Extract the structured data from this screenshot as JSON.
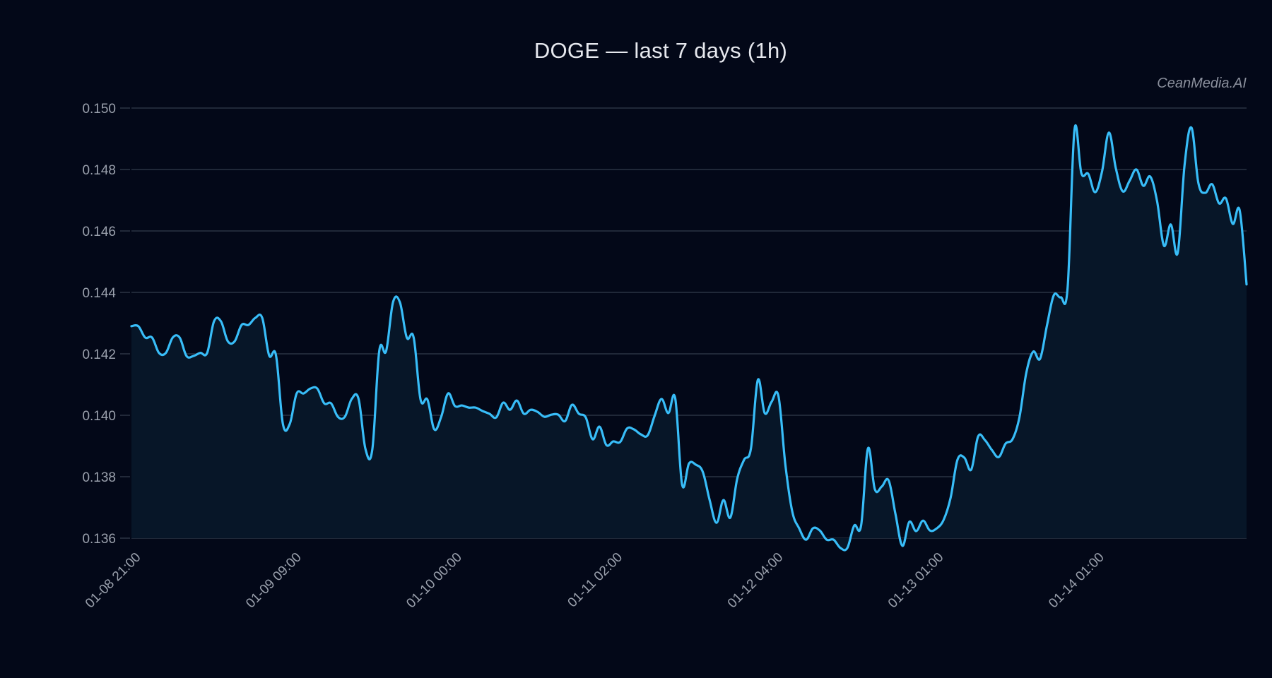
{
  "header": {
    "title": "DOGE — last 7 days (1h)",
    "watermark": "CeanMedia.AI"
  },
  "colors": {
    "background": "#030818",
    "line": "#38bdf8",
    "fill": "#071628",
    "grid": "#2a3242",
    "tick_text": "#9aa0ac"
  },
  "chart_data": {
    "type": "area",
    "title": "DOGE — last 7 days (1h)",
    "xlabel": "",
    "ylabel": "",
    "ylim": [
      0.136,
      0.15
    ],
    "grid": true,
    "legend": null,
    "yticks": [
      "0.136",
      "0.138",
      "0.140",
      "0.142",
      "0.144",
      "0.146",
      "0.148",
      "0.150"
    ],
    "xticks": [
      {
        "label": "01-08 21:00",
        "index": 0
      },
      {
        "label": "01-09 09:00",
        "index": 21
      },
      {
        "label": "01-10 00:00",
        "index": 42
      },
      {
        "label": "01-11 02:00",
        "index": 63
      },
      {
        "label": "01-12 04:00",
        "index": 84
      },
      {
        "label": "01-13 01:00",
        "index": 105
      },
      {
        "label": "01-14 01:00",
        "index": 126
      }
    ],
    "series": [
      {
        "name": "DOGE",
        "values": [
          0.1429,
          0.1429,
          0.14253,
          0.14253,
          0.14203,
          0.14203,
          0.14253,
          0.14253,
          0.14193,
          0.14193,
          0.14203,
          0.14203,
          0.14306,
          0.14306,
          0.14241,
          0.14241,
          0.14294,
          0.14294,
          0.14317,
          0.14317,
          0.14195,
          0.14195,
          0.13972,
          0.13972,
          0.14071,
          0.14071,
          0.14087,
          0.14087,
          0.14039,
          0.14039,
          0.13995,
          0.13995,
          0.14053,
          0.14053,
          0.1389,
          0.1389,
          0.14209,
          0.14209,
          0.14368,
          0.14368,
          0.14253,
          0.14253,
          0.14051,
          0.14051,
          0.13954,
          0.13995,
          0.14071,
          0.1403,
          0.14032,
          0.14025,
          0.14025,
          0.14014,
          0.14005,
          0.13993,
          0.14041,
          0.14018,
          0.14048,
          0.14005,
          0.14018,
          0.14011,
          0.13995,
          0.14002,
          0.14002,
          0.13981,
          0.14034,
          0.14005,
          0.13993,
          0.13922,
          0.13963,
          0.13903,
          0.13915,
          0.13913,
          0.13957,
          0.13954,
          0.13938,
          0.13935,
          0.13998,
          0.14053,
          0.14007,
          0.14055,
          0.13774,
          0.13843,
          0.13839,
          0.13816,
          0.13724,
          0.1365,
          0.13724,
          0.13667,
          0.13793,
          0.13855,
          0.13892,
          0.14115,
          0.14007,
          0.14044,
          0.14062,
          0.13839,
          0.13687,
          0.13632,
          0.13595,
          0.13632,
          0.13625,
          0.13595,
          0.13595,
          0.13568,
          0.13568,
          0.13641,
          0.13641,
          0.13892,
          0.13759,
          0.13768,
          0.13788,
          0.13678,
          0.13575,
          0.13653,
          0.13623,
          0.13657,
          0.13625,
          0.13632,
          0.1366,
          0.13731,
          0.13855,
          0.13862,
          0.13823,
          0.13931,
          0.13919,
          0.13887,
          0.13864,
          0.13908,
          0.13922,
          0.13993,
          0.14138,
          0.14207,
          0.14184,
          0.14292,
          0.14391,
          0.14384,
          0.14414,
          0.14929,
          0.14788,
          0.14786,
          0.14726,
          0.14793,
          0.1492,
          0.14805,
          0.14729,
          0.14763,
          0.148,
          0.14747,
          0.14777,
          0.14697,
          0.14552,
          0.14621,
          0.14529,
          0.14816,
          0.14936,
          0.14756,
          0.14724,
          0.14752,
          0.1469,
          0.14706,
          0.14623,
          0.14667,
          0.14426
        ]
      }
    ]
  }
}
